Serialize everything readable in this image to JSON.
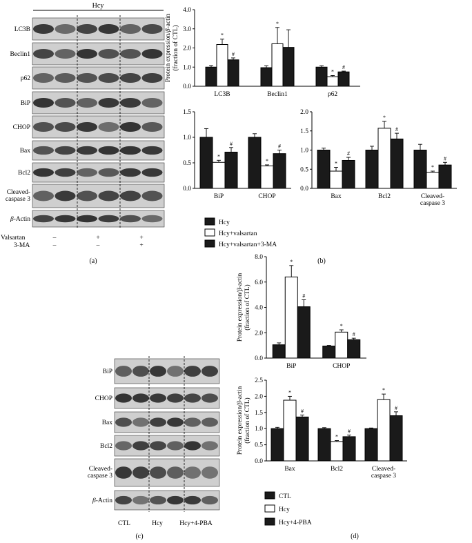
{
  "panel_labels": {
    "a": "(a)",
    "b": "(b)",
    "c": "(c)",
    "d": "(d)"
  },
  "blot_a": {
    "hcy_label": "Hcy",
    "bands": [
      "LC3B",
      "Beclin1",
      "p62",
      "BiP",
      "CHOP",
      "Bax",
      "Bcl2",
      "Cleaved-\ncaspase 3",
      "β-Actin"
    ],
    "treatments": [
      {
        "name": "Valsartan",
        "signs": [
          "–",
          "+",
          "+"
        ]
      },
      {
        "name": "3-MA",
        "signs": [
          "–",
          "–",
          "+"
        ]
      }
    ]
  },
  "blot_c": {
    "bands": [
      "BiP",
      "CHOP",
      "Bax",
      "Bcl2",
      "Cleaved-\ncaspase 3",
      "β-Actin"
    ],
    "groups": [
      "CTL",
      "Hcy",
      "Hcy+4-PBA"
    ]
  },
  "colors": {
    "dark": "#1a1a1a",
    "light": "#ffffff",
    "blot": "#2b2b2b"
  },
  "chart_data": [
    {
      "id": "b1",
      "type": "bar",
      "ylabel": "Protein expression/β-actin\n(fraction of CTL)",
      "ylim": [
        0,
        4
      ],
      "yticks": [
        "0.0",
        "1.0",
        "2.0",
        "3.0",
        "4.0"
      ],
      "categories": [
        "LC3B",
        "Beclin1",
        "p62"
      ],
      "series": [
        {
          "name": "Hcy",
          "values": [
            1.0,
            0.97,
            1.0
          ],
          "err": [
            0.08,
            0.1,
            0.07
          ]
        },
        {
          "name": "Hcy+valsartan",
          "values": [
            2.18,
            2.22,
            0.5
          ],
          "err": [
            0.28,
            0.85,
            0.06
          ]
        },
        {
          "name": "Hcy+valsartan+3-MA",
          "values": [
            1.38,
            2.03,
            0.75
          ],
          "err": [
            0.1,
            0.92,
            0.04
          ]
        }
      ],
      "marks": [
        [
          "",
          "*",
          "#"
        ],
        [
          "",
          "*",
          ""
        ],
        [
          "",
          "*",
          "#"
        ]
      ]
    },
    {
      "id": "b2",
      "type": "bar",
      "ylim": [
        0,
        1.5
      ],
      "yticks": [
        "0.0",
        "0.5",
        "1.0",
        "1.5"
      ],
      "categories": [
        "BiP",
        "CHOP"
      ],
      "series": [
        {
          "name": "Hcy",
          "values": [
            1.0,
            1.0
          ],
          "err": [
            0.17,
            0.07
          ]
        },
        {
          "name": "Hcy+valsartan",
          "values": [
            0.51,
            0.44
          ],
          "err": [
            0.04,
            0.02
          ]
        },
        {
          "name": "Hcy+valsartan+3-MA",
          "values": [
            0.71,
            0.68
          ],
          "err": [
            0.09,
            0.07
          ]
        }
      ],
      "marks": [
        [
          "",
          "*",
          "#"
        ],
        [
          "",
          "*",
          "#"
        ]
      ]
    },
    {
      "id": "b3",
      "type": "bar",
      "ylim": [
        0,
        2
      ],
      "yticks": [
        "0.0",
        "0.5",
        "1.0",
        "1.5",
        "2.0"
      ],
      "categories": [
        "Bax",
        "Bcl2",
        "Cleaved-\ncaspase 3"
      ],
      "series": [
        {
          "name": "Hcy",
          "values": [
            1.0,
            1.0,
            1.0
          ],
          "err": [
            0.05,
            0.1,
            0.15
          ]
        },
        {
          "name": "Hcy+valsartan",
          "values": [
            0.45,
            1.57,
            0.42
          ],
          "err": [
            0.1,
            0.18,
            0.03
          ]
        },
        {
          "name": "Hcy+valsartan+3-MA",
          "values": [
            0.73,
            1.29,
            0.61
          ],
          "err": [
            0.08,
            0.15,
            0.07
          ]
        }
      ],
      "marks": [
        [
          "",
          "*",
          "#"
        ],
        [
          "",
          "*",
          "#"
        ],
        [
          "",
          "*",
          "#"
        ]
      ]
    },
    {
      "id": "d1",
      "type": "bar",
      "ylabel": "Protein expression/β-actin\n(fraction of CTL)",
      "ylim": [
        0,
        8
      ],
      "yticks": [
        "0.0",
        "2.0",
        "4.0",
        "6.0",
        "8.0"
      ],
      "categories": [
        "BiP",
        "CHOP"
      ],
      "series": [
        {
          "name": "CTL",
          "values": [
            1.05,
            0.95
          ],
          "err": [
            0.15,
            0.05
          ]
        },
        {
          "name": "Hcy",
          "values": [
            6.4,
            2.05
          ],
          "err": [
            0.9,
            0.18
          ]
        },
        {
          "name": "Hcy+4-PBA",
          "values": [
            4.05,
            1.45
          ],
          "err": [
            0.55,
            0.12
          ]
        }
      ],
      "marks": [
        [
          "",
          "*",
          "#"
        ],
        [
          "",
          "*",
          "#"
        ]
      ]
    },
    {
      "id": "d2",
      "type": "bar",
      "ylabel": "Protein expression/β-actin\n(fraction of CTL)",
      "ylim": [
        0,
        2.5
      ],
      "yticks": [
        "0.0",
        "0.5",
        "1.0",
        "1.5",
        "2.0",
        "2.5"
      ],
      "categories": [
        "Bax",
        "Bcl2",
        "Cleaved-\ncaspase 3"
      ],
      "series": [
        {
          "name": "CTL",
          "values": [
            1.0,
            1.0,
            1.0
          ],
          "err": [
            0.04,
            0.03,
            0.02
          ]
        },
        {
          "name": "Hcy",
          "values": [
            1.88,
            0.6,
            1.9
          ],
          "err": [
            0.12,
            0.03,
            0.17
          ]
        },
        {
          "name": "Hcy+4-PBA",
          "values": [
            1.36,
            0.75,
            1.4
          ],
          "err": [
            0.06,
            0.05,
            0.12
          ]
        }
      ],
      "marks": [
        [
          "",
          "*",
          "#"
        ],
        [
          "",
          "*",
          "#"
        ],
        [
          "",
          "*",
          "#"
        ]
      ]
    }
  ],
  "legend_b": [
    "Hcy",
    "Hcy+valsartan",
    "Hcy+valsartan+3-MA"
  ],
  "legend_d": [
    "CTL",
    "Hcy",
    "Hcy+4-PBA"
  ]
}
